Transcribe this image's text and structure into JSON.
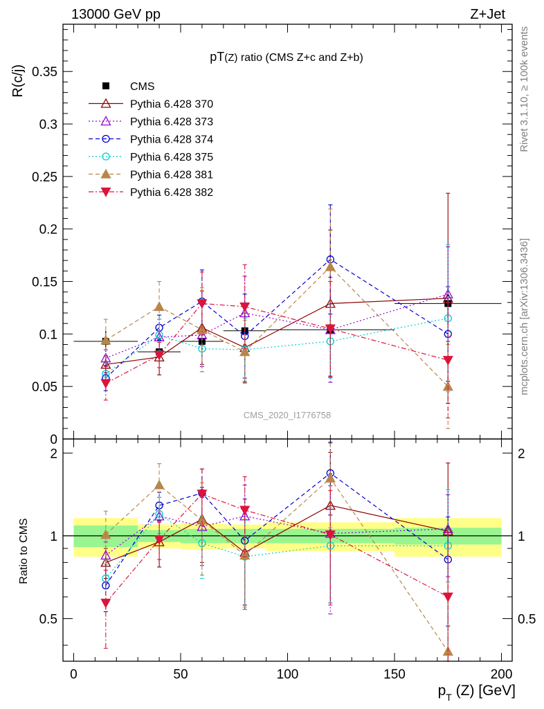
{
  "header": {
    "left": "13000 GeV pp",
    "right": "Z+Jet"
  },
  "side_text": {
    "rivet": "Rivet 3.1.10, ≥ 100k events",
    "mcplots": "mcplots.cern.ch [arXiv:1306.3436]"
  },
  "chart_data": [
    {
      "type": "scatter",
      "panel": "main",
      "title": "pT(Z) ratio (CMS  Z+c and Z+b)",
      "title_main": "pT",
      "title_sub": "(Z)",
      "title_rest": " ratio (CMS  Z+c and Z+b)",
      "ylabel": "R(c/j)",
      "watermark": "CMS_2020_I1776758",
      "xlim": [
        -5,
        205
      ],
      "ylim": [
        0,
        0.395
      ],
      "yticks": [
        0,
        0.05,
        0.1,
        0.15,
        0.2,
        0.25,
        0.3,
        0.35
      ],
      "ytick_labels": [
        "0",
        "0.05",
        "0.1",
        "0.15",
        "0.2",
        "0.25",
        "0.3",
        "0.35"
      ],
      "legend_position": "top-left",
      "data": {
        "x": [
          15,
          40,
          60,
          80,
          120,
          175
        ],
        "xerr": [
          15,
          10,
          10,
          10,
          30,
          25
        ],
        "y": [
          0.093,
          0.083,
          0.093,
          0.103,
          0.104,
          0.129
        ],
        "yerr_total": [
          0.01,
          0.008,
          0.008,
          0.009,
          0.011,
          0.013
        ],
        "yerr_stat": [
          0.006,
          0.004,
          0.005,
          0.005,
          0.007,
          0.008
        ]
      },
      "series": [
        {
          "name": "CMS",
          "color": "#000000",
          "marker": "square",
          "line": "none",
          "x": [
            15,
            40,
            60,
            80,
            120,
            175
          ],
          "values": [
            0.093,
            0.083,
            0.093,
            0.103,
            0.104,
            0.129
          ]
        },
        {
          "name": "Pythia 6.428 370",
          "color": "#8b0000",
          "marker": "triangle-open",
          "line": "solid",
          "x": [
            15,
            40,
            60,
            80,
            120,
            175
          ],
          "values": [
            0.071,
            0.078,
            0.106,
            0.087,
            0.129,
            0.134
          ],
          "err": [
            0.008,
            0.017,
            0.035,
            0.033,
            0.07,
            0.1
          ]
        },
        {
          "name": "Pythia 6.428 373",
          "color": "#9400d3",
          "marker": "triangle-open",
          "line": "dotted",
          "x": [
            15,
            40,
            60,
            80,
            120,
            175
          ],
          "values": [
            0.077,
            0.097,
            0.099,
            0.12,
            0.104,
            0.138
          ],
          "err": [
            0.008,
            0.017,
            0.03,
            0.035,
            0.05,
            0.045
          ]
        },
        {
          "name": "Pythia 6.428 374",
          "color": "#0000cd",
          "marker": "circle-open",
          "line": "dashed",
          "x": [
            15,
            40,
            60,
            80,
            120,
            175
          ],
          "values": [
            0.058,
            0.106,
            0.131,
            0.098,
            0.171,
            0.1
          ],
          "err": [
            0.012,
            0.012,
            0.03,
            0.04,
            0.052,
            0.045
          ]
        },
        {
          "name": "Pythia 6.428 375",
          "color": "#00ced1",
          "marker": "circle-open",
          "line": "dotted",
          "x": [
            15,
            40,
            60,
            80,
            120,
            175
          ],
          "values": [
            0.062,
            0.099,
            0.086,
            0.085,
            0.093,
            0.115
          ],
          "err": [
            0.01,
            0.015,
            0.022,
            0.03,
            0.035,
            0.07
          ]
        },
        {
          "name": "Pythia 6.428 381",
          "color": "#b8864b",
          "marker": "triangle-filled",
          "line": "dashed",
          "x": [
            15,
            40,
            60,
            80,
            120,
            175
          ],
          "values": [
            0.094,
            0.126,
            0.104,
            0.083,
            0.164,
            0.05
          ],
          "err": [
            0.02,
            0.024,
            0.04,
            0.03,
            0.055,
            0.04
          ]
        },
        {
          "name": "Pythia 6.428 382",
          "color": "#dc143c",
          "marker": "triangledown-filled",
          "line": "dashdot",
          "x": [
            15,
            40,
            60,
            80,
            120,
            175
          ],
          "values": [
            0.053,
            0.08,
            0.129,
            0.126,
            0.105,
            0.075
          ],
          "err": [
            0.016,
            0.012,
            0.03,
            0.04,
            0.045,
            0.055
          ]
        }
      ]
    },
    {
      "type": "scatter",
      "panel": "ratio",
      "ylabel": "Ratio to CMS",
      "xlabel": "p_T (Z) [GeV]",
      "xlabel_main": "p",
      "xlabel_sub": "T",
      "xlabel_rest": " (Z) [GeV]",
      "xlim": [
        -5,
        205
      ],
      "ylim": [
        0.35,
        2.25
      ],
      "xticks": [
        0,
        50,
        100,
        150,
        200
      ],
      "xtick_labels": [
        "0",
        "50",
        "100",
        "150",
        "200"
      ],
      "yticks": [
        0.5,
        1,
        2
      ],
      "ytick_labels": [
        "0.5",
        "1",
        "2"
      ],
      "bands": {
        "x_lo": [
          0,
          30,
          50,
          70,
          90,
          150
        ],
        "x_hi": [
          30,
          50,
          70,
          90,
          150,
          200
        ],
        "inner": [
          0.09,
          0.05,
          0.06,
          0.06,
          0.06,
          0.07
        ],
        "outer": [
          0.16,
          0.1,
          0.11,
          0.1,
          0.12,
          0.16
        ]
      },
      "series": [
        {
          "name": "Pythia 6.428 370",
          "x": [
            15,
            40,
            60,
            80,
            120,
            175
          ],
          "values": [
            0.8,
            0.95,
            1.15,
            0.87,
            1.29,
            1.04
          ],
          "err": [
            0.1,
            0.18,
            0.35,
            0.33,
            0.72,
            0.8
          ]
        },
        {
          "name": "Pythia 6.428 373",
          "x": [
            15,
            40,
            60,
            80,
            120,
            175
          ],
          "values": [
            0.85,
            1.18,
            1.08,
            1.18,
            1.02,
            1.06
          ],
          "err": [
            0.1,
            0.2,
            0.3,
            0.35,
            0.5,
            0.35
          ]
        },
        {
          "name": "Pythia 6.428 374",
          "x": [
            15,
            40,
            60,
            80,
            120,
            175
          ],
          "values": [
            0.66,
            1.29,
            1.43,
            0.96,
            1.69,
            0.82
          ],
          "err": [
            0.13,
            0.15,
            0.32,
            0.4,
            0.5,
            0.35
          ]
        },
        {
          "name": "Pythia 6.428 375",
          "x": [
            15,
            40,
            60,
            80,
            120,
            175
          ],
          "values": [
            0.7,
            1.2,
            0.94,
            0.84,
            0.92,
            0.92
          ],
          "err": [
            0.12,
            0.18,
            0.24,
            0.3,
            0.35,
            0.55
          ]
        },
        {
          "name": "Pythia 6.428 381",
          "x": [
            15,
            40,
            60,
            80,
            120,
            175
          ],
          "values": [
            1.01,
            1.53,
            1.14,
            0.85,
            1.62,
            0.38
          ],
          "err": [
            0.22,
            0.3,
            0.42,
            0.3,
            0.55,
            0.3
          ]
        },
        {
          "name": "Pythia 6.428 382",
          "x": [
            15,
            40,
            60,
            80,
            120,
            175
          ],
          "values": [
            0.57,
            0.97,
            1.42,
            1.24,
            1.01,
            0.6
          ],
          "err": [
            0.18,
            0.15,
            0.33,
            0.4,
            0.45,
            0.43
          ]
        }
      ]
    }
  ]
}
